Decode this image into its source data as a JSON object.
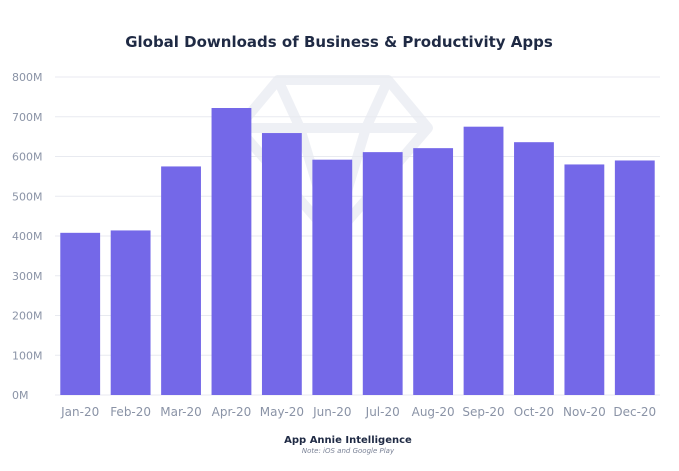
{
  "chart_data": {
    "type": "bar",
    "title": "Global Downloads of Business & Productivity Apps",
    "categories": [
      "Jan-20",
      "Feb-20",
      "Mar-20",
      "Apr-20",
      "May-20",
      "Jun-20",
      "Jul-20",
      "Aug-20",
      "Sep-20",
      "Oct-20",
      "Nov-20",
      "Dec-20"
    ],
    "values": [
      408,
      414,
      575,
      722,
      659,
      592,
      611,
      621,
      675,
      636,
      580,
      590
    ],
    "unit_suffix": "M",
    "y_ticks": [
      "0M",
      "100M",
      "200M",
      "300M",
      "400M",
      "500M",
      "600M",
      "700M",
      "800M"
    ],
    "ylim": [
      0,
      800
    ],
    "xlabel": "",
    "ylabel": "",
    "grid": true,
    "bar_color": "#7468e8",
    "source": "App Annie Intelligence",
    "note": "Note: iOS and Google Play"
  }
}
